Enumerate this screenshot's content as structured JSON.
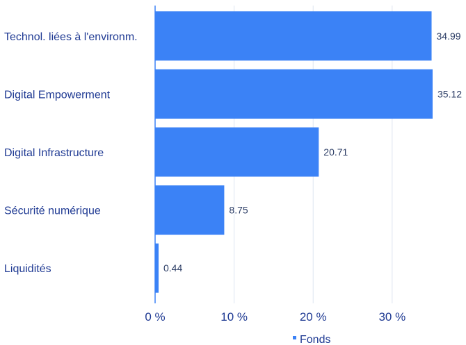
{
  "chart_data": {
    "type": "bar",
    "orientation": "horizontal",
    "categories": [
      "Technol. liées à l'environm.",
      "Digital Empowerment",
      "Digital Infrastructure",
      "Sécurité numérique",
      "Liquidités"
    ],
    "series": [
      {
        "name": "Fonds",
        "values": [
          34.99,
          35.12,
          20.71,
          8.75,
          0.44
        ],
        "value_labels": [
          "34.99",
          "35.12",
          "20.71",
          "8.75",
          "0.44"
        ],
        "color": "#3b82f6"
      }
    ],
    "xlim": [
      0,
      35.12
    ],
    "xticks": [
      0,
      10,
      20,
      30
    ],
    "xtick_labels": [
      "0 %",
      "10 %",
      "20 %",
      "30 %"
    ],
    "grid": true,
    "legend": "bottom-center",
    "axis_color": "#3b82f6",
    "grid_color": "#dde4f0"
  }
}
